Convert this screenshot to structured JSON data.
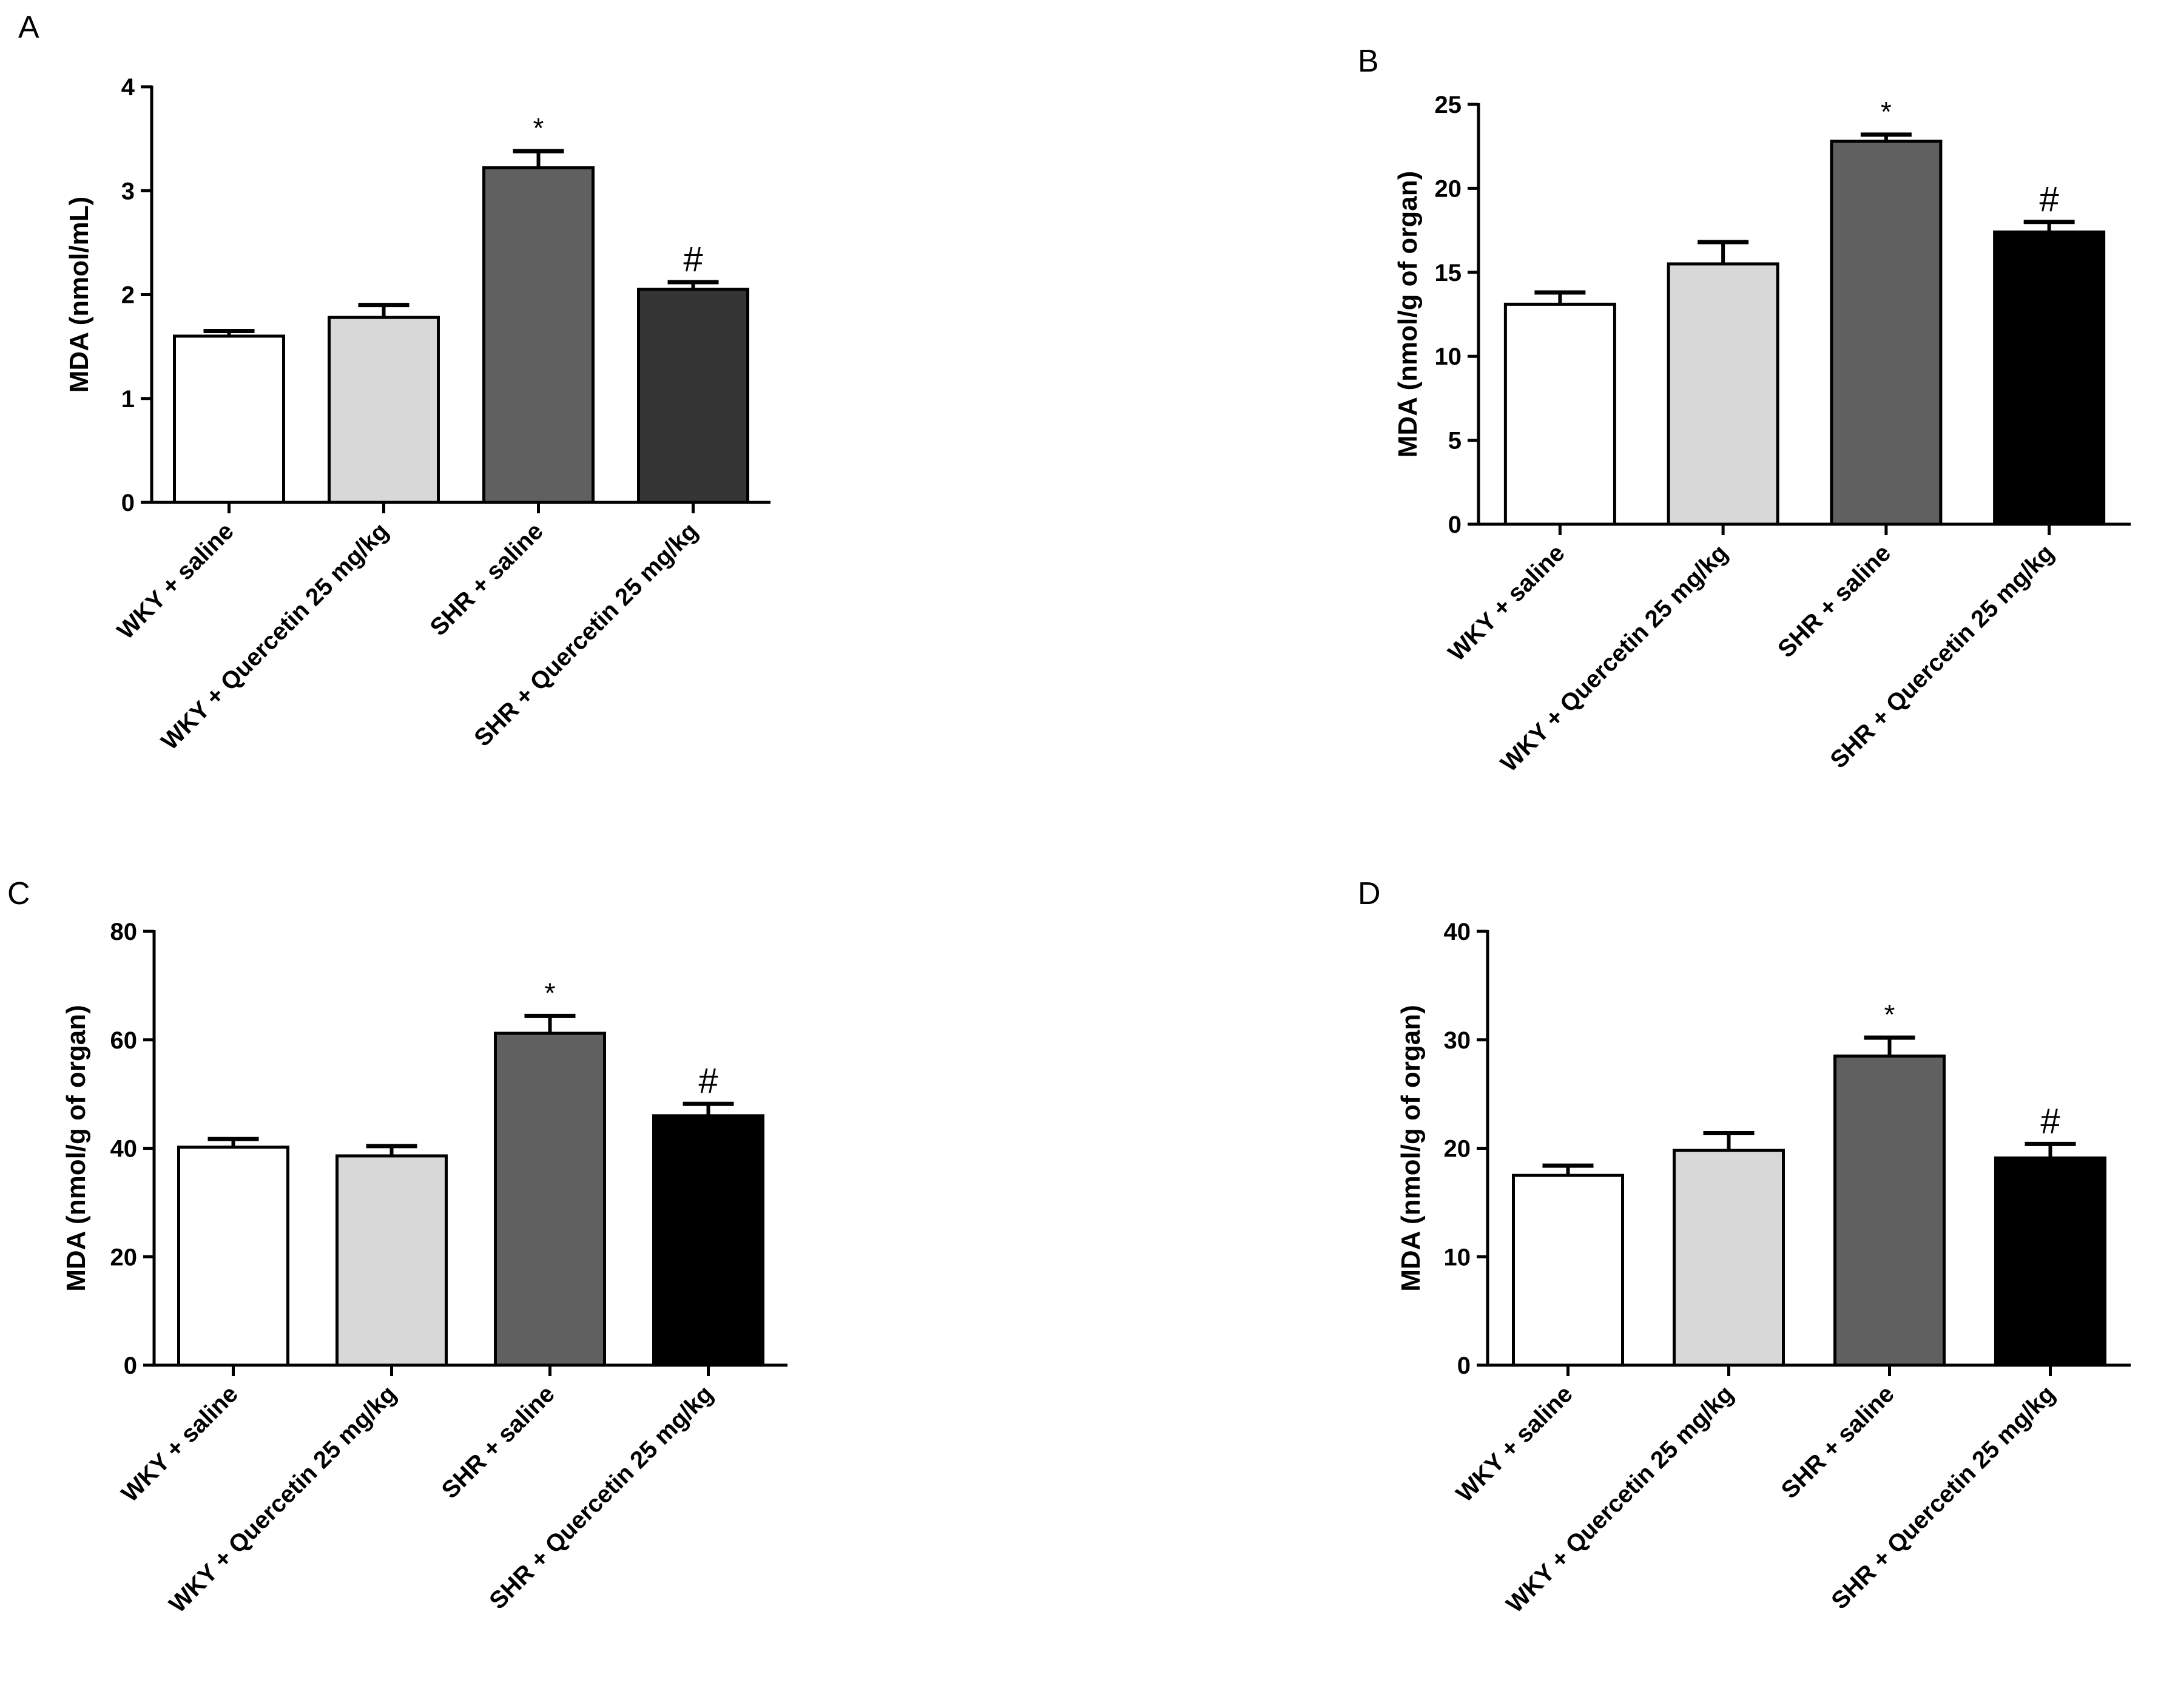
{
  "figure": {
    "colors": {
      "axis": "#000000",
      "bar_stroke": "#000000"
    }
  },
  "chart_data": [
    {
      "panel": "A",
      "type": "bar",
      "ylabel": "MDA (nmol/mL)",
      "ylim": [
        0,
        4
      ],
      "yticks": [
        0,
        1,
        2,
        3,
        4
      ],
      "categories": [
        "WKY + saline",
        "WKY + Quercetin 25 mg/kg",
        "SHR + saline",
        "SHR + Quercetin 25 mg/kg"
      ],
      "values": [
        1.6,
        1.78,
        3.22,
        2.05
      ],
      "errors": [
        0.05,
        0.12,
        0.16,
        0.07
      ],
      "bar_colors": [
        "#ffffff",
        "#d8d8d8",
        "#606060",
        "#353535"
      ],
      "annotations": [
        "",
        "",
        "*",
        "#"
      ]
    },
    {
      "panel": "B",
      "type": "bar",
      "ylabel": "MDA (nmol/g of organ)",
      "ylim": [
        0,
        25
      ],
      "yticks": [
        0,
        5,
        10,
        15,
        20,
        25
      ],
      "categories": [
        "WKY + saline",
        "WKY + Quercetin 25 mg/kg",
        "SHR + saline",
        "SHR + Quercetin 25 mg/kg"
      ],
      "values": [
        13.1,
        15.5,
        22.8,
        17.4
      ],
      "errors": [
        0.7,
        1.3,
        0.4,
        0.6
      ],
      "bar_colors": [
        "#ffffff",
        "#d8d8d8",
        "#606060",
        "#000000"
      ],
      "annotations": [
        "",
        "",
        "*",
        "#"
      ]
    },
    {
      "panel": "C",
      "type": "bar",
      "ylabel": "MDA (nmol/g of organ)",
      "ylim": [
        0,
        80
      ],
      "yticks": [
        0,
        20,
        40,
        60,
        80
      ],
      "categories": [
        "WKY + saline",
        "WKY + Quercetin 25 mg/kg",
        "SHR + saline",
        "SHR + Quercetin 25 mg/kg"
      ],
      "values": [
        40.2,
        38.6,
        61.2,
        46.0
      ],
      "errors": [
        1.5,
        1.8,
        3.2,
        2.2
      ],
      "bar_colors": [
        "#ffffff",
        "#d8d8d8",
        "#606060",
        "#000000"
      ],
      "annotations": [
        "",
        "",
        "*",
        "#"
      ]
    },
    {
      "panel": "D",
      "type": "bar",
      "ylabel": "MDA (nmol/g of organ)",
      "ylim": [
        0,
        40
      ],
      "yticks": [
        0,
        10,
        20,
        30,
        40
      ],
      "categories": [
        "WKY + saline",
        "WKY + Quercetin 25 mg/kg",
        "SHR + saline",
        "SHR + Quercetin 25 mg/kg"
      ],
      "values": [
        17.5,
        19.8,
        28.5,
        19.1
      ],
      "errors": [
        0.9,
        1.6,
        1.7,
        1.3
      ],
      "bar_colors": [
        "#ffffff",
        "#d8d8d8",
        "#606060",
        "#000000"
      ],
      "annotations": [
        "",
        "",
        "*",
        "#"
      ]
    }
  ]
}
